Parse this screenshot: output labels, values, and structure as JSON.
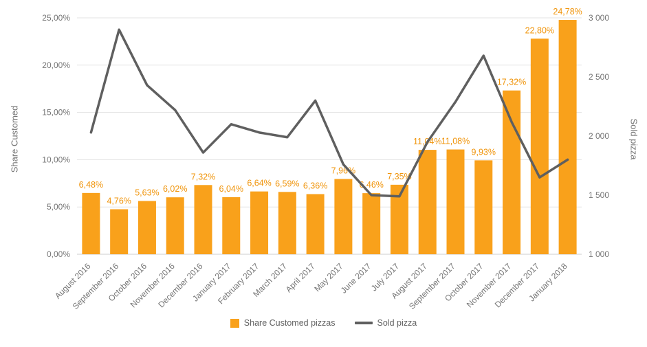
{
  "chart_data": {
    "type": "combo",
    "title": "",
    "categories": [
      "August 2016",
      "September 2016",
      "October 2016",
      "November 2016",
      "December 2016",
      "January 2017",
      "February 2017",
      "March 2017",
      "April 2017",
      "May 2017",
      "June 2017",
      "July 2017",
      "August 2017",
      "September 2017",
      "October 2017",
      "November 2017",
      "December 2017",
      "January 2018"
    ],
    "series": [
      {
        "name": "Share Customed pizzas",
        "type": "bar",
        "axis": "left",
        "values": [
          6.48,
          4.76,
          5.63,
          6.02,
          7.32,
          6.04,
          6.64,
          6.59,
          6.36,
          7.96,
          6.46,
          7.35,
          11.04,
          11.08,
          9.93,
          17.32,
          22.8,
          24.78
        ],
        "labels": [
          "6,48%",
          "4,76%",
          "5,63%",
          "6,02%",
          "7,32%",
          "6,04%",
          "6,64%",
          "6,59%",
          "6,36%",
          "7,96%",
          "6,46%",
          "7,35%",
          "11,04%",
          "11,08%",
          "9,93%",
          "17,32%",
          "22,80%",
          "24,78%"
        ]
      },
      {
        "name": "Sold pizza",
        "type": "line",
        "axis": "right",
        "values": [
          2030,
          2900,
          2430,
          2220,
          1860,
          2100,
          2030,
          1990,
          2300,
          1760,
          1500,
          1490,
          1950,
          2290,
          2680,
          2120,
          1650,
          1800
        ]
      }
    ],
    "left_axis": {
      "title": "Share Customed",
      "min": 0,
      "max": 25,
      "ticks": [
        {
          "v": 0,
          "label": "0,00%"
        },
        {
          "v": 5,
          "label": "5,00%"
        },
        {
          "v": 10,
          "label": "10,00%"
        },
        {
          "v": 15,
          "label": "15,00%"
        },
        {
          "v": 20,
          "label": "20,00%"
        },
        {
          "v": 25,
          "label": "25,00%"
        }
      ]
    },
    "right_axis": {
      "title": "Sold pizza",
      "min": 1000,
      "max": 3000,
      "ticks": [
        {
          "v": 1000,
          "label": "1 000"
        },
        {
          "v": 1500,
          "label": "1 500"
        },
        {
          "v": 2000,
          "label": "2 000"
        },
        {
          "v": 2500,
          "label": "2 500"
        },
        {
          "v": 3000,
          "label": "3 000"
        }
      ]
    },
    "grid": true,
    "legend_position": "bottom"
  },
  "legend": {
    "bar_label": "Share Customed pizzas",
    "line_label": "Sold pizza"
  },
  "colors": {
    "bar": "#F9A11B",
    "bar_label": "#F0940A",
    "line": "#5F5F5F",
    "grid": "#E3E3E3",
    "axis_text": "#757575"
  }
}
